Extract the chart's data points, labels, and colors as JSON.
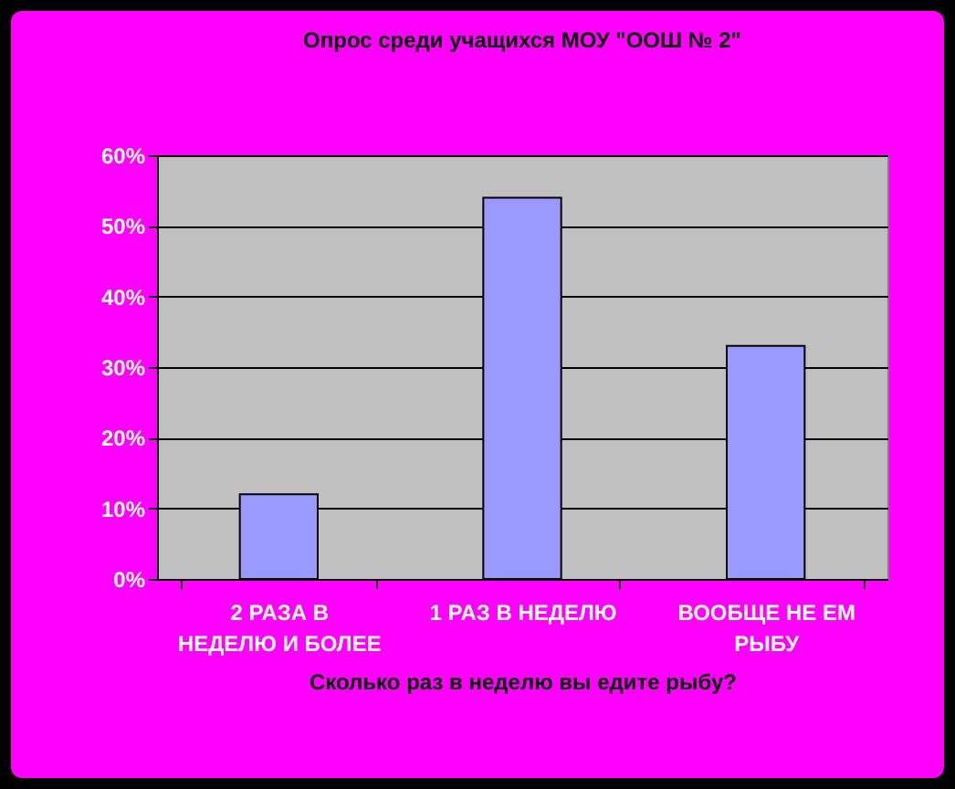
{
  "chart_data": {
    "type": "bar",
    "title": "Опрос среди учащихся МОУ \"ООШ № 2\"",
    "xlabel": "Сколько раз в неделю вы едите рыбу?",
    "categories": [
      "2 РАЗА В НЕДЕЛЮ И БОЛЕЕ",
      "1 РАЗ В НЕДЕЛЮ",
      "ВООБЩЕ НЕ ЕМ РЫБУ"
    ],
    "values": [
      0.12,
      0.54,
      0.33
    ],
    "color": "#9999ff",
    "ylim": [
      0,
      0.6
    ],
    "yticks": [
      {
        "value": 0,
        "label": "0%"
      },
      {
        "value": 0.1,
        "label": "10%"
      },
      {
        "value": 0.2,
        "label": "20%"
      },
      {
        "value": 0.3,
        "label": "30%"
      },
      {
        "value": 0.4,
        "label": "40%"
      },
      {
        "value": 0.5,
        "label": "50%"
      },
      {
        "value": 0.6,
        "label": "60%"
      }
    ],
    "grid": "y"
  }
}
